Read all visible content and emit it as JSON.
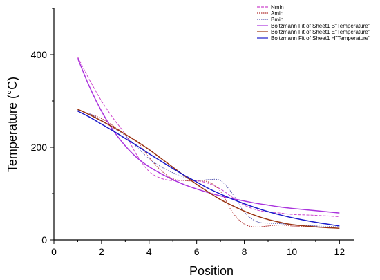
{
  "chart_data": {
    "type": "line",
    "xlabel": "Position",
    "ylabel": "Temperature (°C)",
    "xlim": [
      0,
      12.6
    ],
    "ylim": [
      0,
      500
    ],
    "xticks": [
      0,
      2,
      4,
      6,
      8,
      10,
      12
    ],
    "yticks": [
      0,
      200,
      400
    ],
    "grid": false,
    "legend_position": "top-right",
    "series": [
      {
        "name": "Nmin",
        "style": "dashed",
        "color": "#cc44cc",
        "x": [
          1,
          1.5,
          2,
          2.5,
          3,
          3.5,
          4,
          4.5,
          5,
          5.5,
          6,
          6.5,
          7,
          7.5,
          8,
          8.5,
          9,
          9.5,
          10,
          11,
          12
        ],
        "y": [
          395,
          345,
          300,
          262,
          228,
          182,
          148,
          133,
          128,
          129,
          128,
          122,
          110,
          92,
          75,
          65,
          60,
          58,
          55,
          53,
          50
        ]
      },
      {
        "name": "Amin",
        "style": "dotted",
        "color": "#b03030",
        "x": [
          1,
          1.5,
          2,
          2.5,
          3,
          3.5,
          4,
          4.5,
          5,
          5.5,
          6,
          6.5,
          7,
          7.5,
          8,
          8.5,
          9,
          9.5,
          10,
          11,
          12
        ],
        "y": [
          282,
          272,
          262,
          246,
          228,
          212,
          178,
          150,
          132,
          128,
          127,
          125,
          105,
          60,
          34,
          28,
          30,
          32,
          30,
          28,
          25
        ]
      },
      {
        "name": "Bmin",
        "style": "dotted",
        "color": "#5a5ab0",
        "x": [
          1,
          1.5,
          2,
          2.5,
          3,
          3.5,
          4,
          4.5,
          5,
          5.5,
          6,
          6.5,
          7,
          7.5,
          8,
          8.5,
          9,
          9.5,
          10,
          11,
          12
        ],
        "y": [
          280,
          272,
          258,
          242,
          225,
          200,
          175,
          158,
          145,
          135,
          128,
          130,
          128,
          100,
          60,
          40,
          36,
          35,
          33,
          30,
          28
        ]
      },
      {
        "name": "Boltzmann Fit of Sheet1 B\"Temperature\"",
        "style": "solid",
        "color": "#aa33dd",
        "x": [
          1,
          1.5,
          2,
          2.5,
          3,
          3.5,
          4,
          4.5,
          5,
          5.5,
          6,
          6.5,
          7,
          7.5,
          8,
          8.5,
          9,
          9.5,
          10,
          11,
          12
        ],
        "y": [
          392,
          330,
          278,
          236,
          203,
          177,
          158,
          143,
          130,
          119,
          110,
          102,
          95,
          89,
          84,
          79,
          75,
          71,
          68,
          63,
          58
        ]
      },
      {
        "name": "Boltzmann Fit of Sheet1 E\"Temperature\"",
        "style": "solid",
        "color": "#993311",
        "x": [
          1,
          1.5,
          2,
          2.5,
          3,
          3.5,
          4,
          4.5,
          5,
          5.5,
          6,
          6.5,
          7,
          7.5,
          8,
          8.5,
          9,
          9.5,
          10,
          11,
          12
        ],
        "y": [
          282,
          270,
          257,
          243,
          228,
          212,
          195,
          176,
          157,
          138,
          120,
          103,
          87,
          74,
          62,
          52,
          44,
          38,
          33,
          28,
          25
        ]
      },
      {
        "name": "Boltzmann Fit of Sheet1 H\"Temperature\"",
        "style": "solid",
        "color": "#1a1acc",
        "x": [
          1,
          1.5,
          2,
          2.5,
          3,
          3.5,
          4,
          4.5,
          5,
          5.5,
          6,
          6.5,
          7,
          7.5,
          8,
          8.5,
          9,
          9.5,
          10,
          11,
          12
        ],
        "y": [
          278,
          265,
          250,
          235,
          219,
          203,
          186,
          170,
          154,
          139,
          125,
          111,
          99,
          88,
          78,
          69,
          61,
          54,
          48,
          38,
          30
        ]
      }
    ]
  }
}
